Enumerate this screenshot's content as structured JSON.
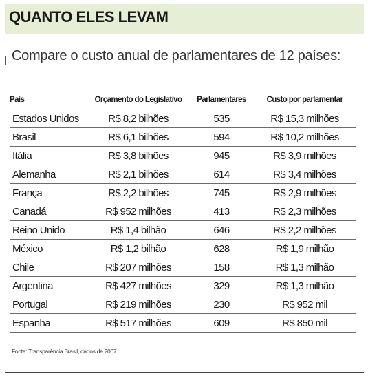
{
  "title": "QUANTO ELES LEVAM",
  "subtitle": "Compare o custo anual de parlamentares de 12 países:",
  "table": {
    "headers": [
      "País",
      "Orçamento do Legislativo",
      "Parlamentares",
      "Custo por parlamentar"
    ],
    "rows": [
      [
        "Estados Unidos",
        "R$ 8,2 bilhões",
        "535",
        "R$ 15,3 milhões"
      ],
      [
        "Brasil",
        "R$ 6,1 bilhões",
        "594",
        "R$ 10,2 milhões"
      ],
      [
        "Itália",
        "R$ 3,8 bilhões",
        "945",
        "R$ 3,9 milhões"
      ],
      [
        "Alemanha",
        "R$ 2,1 bilhões",
        "614",
        "R$ 3,4 milhões"
      ],
      [
        "França",
        "R$ 2,2 bilhões",
        "745",
        "R$ 2,9 milhões"
      ],
      [
        "Canadá",
        "R$ 952 milhões",
        "413",
        "R$ 2,3 milhões"
      ],
      [
        "Reino Unido",
        "R$ 1,4 bilhão",
        "646",
        "R$ 2,2 milhões"
      ],
      [
        "México",
        "R$ 1,2 bilhão",
        "628",
        "R$ 1,9 milhão"
      ],
      [
        "Chile",
        "R$ 207 milhões",
        "158",
        "R$ 1,3 milhão"
      ],
      [
        "Argentina",
        "R$ 427 milhões",
        "329",
        "R$ 1,3 milhão"
      ],
      [
        "Portugal",
        "R$ 219 milhões",
        "230",
        "R$ 952 mil"
      ],
      [
        "Espanha",
        "R$ 517 milhões",
        "609",
        "R$ 850 mil"
      ]
    ]
  },
  "source": "Fonte: Transparência Brasil, dados de 2007.",
  "colors": {
    "title_band": "#e6eed6",
    "rules": "#6b6b6b"
  }
}
